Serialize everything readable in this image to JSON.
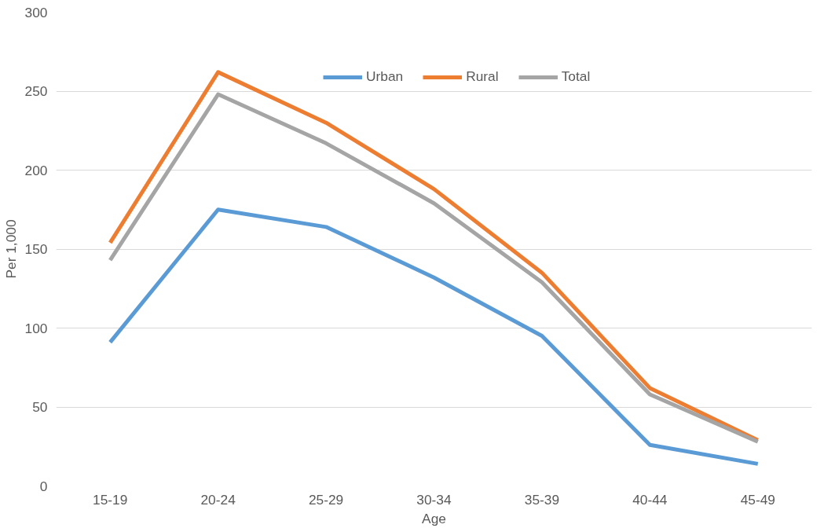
{
  "chart_data": {
    "type": "line",
    "xlabel": "Age",
    "ylabel": "Per 1,000",
    "categories": [
      "15-19",
      "20-24",
      "25-29",
      "30-34",
      "35-39",
      "40-44",
      "45-49"
    ],
    "series": [
      {
        "name": "Urban",
        "color": "#5b9bd5",
        "values": [
          91,
          175,
          164,
          132,
          95,
          26,
          14
        ]
      },
      {
        "name": "Rural",
        "color": "#ed7d31",
        "values": [
          154,
          262,
          230,
          188,
          135,
          62,
          29
        ]
      },
      {
        "name": "Total",
        "color": "#a5a5a5",
        "values": [
          143,
          248,
          217,
          179,
          129,
          58,
          28
        ]
      }
    ],
    "ylim": [
      0,
      300
    ],
    "yticks": [
      0,
      50,
      100,
      150,
      200,
      250,
      300
    ],
    "grid": "y",
    "legend": "top",
    "line_style": "solid",
    "marker": "none"
  }
}
